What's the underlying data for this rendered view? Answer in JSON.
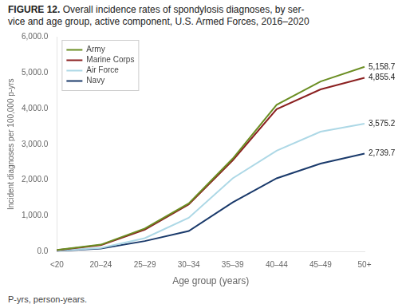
{
  "chart_data": {
    "type": "line",
    "title": "FIGURE 12. Overall incidence rates of spondylosis diagnoses, by ser-\nvice and age group, active component, U.S. Armed Forces, 2016–2020",
    "footnote": "P-yrs, person-years.",
    "xlabel": "Age group (years)",
    "ylabel": "Incident diagnoses per 100,000 p-yrs",
    "categories": [
      "<20",
      "20–24",
      "25–29",
      "30–34",
      "35–39",
      "40–44",
      "45–49",
      "50+"
    ],
    "series": [
      {
        "name": "Army",
        "color": "#6b8e23",
        "values": [
          50,
          200,
          650,
          1350,
          2600,
          4100,
          4750,
          5158.7
        ]
      },
      {
        "name": "Marine Corps",
        "color": "#8b2020",
        "values": [
          45,
          185,
          620,
          1320,
          2550,
          3980,
          4530,
          4855.4
        ]
      },
      {
        "name": "Air Force",
        "color": "#add8e6",
        "values": [
          28,
          110,
          380,
          950,
          2050,
          2820,
          3350,
          3575.2
        ]
      },
      {
        "name": "Navy",
        "color": "#1a3a6b",
        "values": [
          22,
          90,
          300,
          580,
          1380,
          2050,
          2460,
          2739.7
        ]
      }
    ],
    "annotations": [
      {
        "text": "5,158.7",
        "x": "50+",
        "y": 5158.7
      },
      {
        "text": "4,855.4",
        "x": "50+",
        "y": 4855.4
      },
      {
        "text": "3,575.2",
        "x": "50+",
        "y": 3575.2
      },
      {
        "text": "2,739.7",
        "x": "50+",
        "y": 2739.7
      }
    ],
    "ylim": [
      0,
      6000
    ],
    "yticks": [
      {
        "value": 0,
        "label": "0.0"
      },
      {
        "value": 1000,
        "label": "1,000.0"
      },
      {
        "value": 2000,
        "label": "2,000.0"
      },
      {
        "value": 3000,
        "label": "3,000.0"
      },
      {
        "value": 4000,
        "label": "4,000.0"
      },
      {
        "value": 5000,
        "label": "5,000.0"
      },
      {
        "value": 6000,
        "label": "6,000.0"
      }
    ],
    "grid": false,
    "legend": "upper left"
  }
}
